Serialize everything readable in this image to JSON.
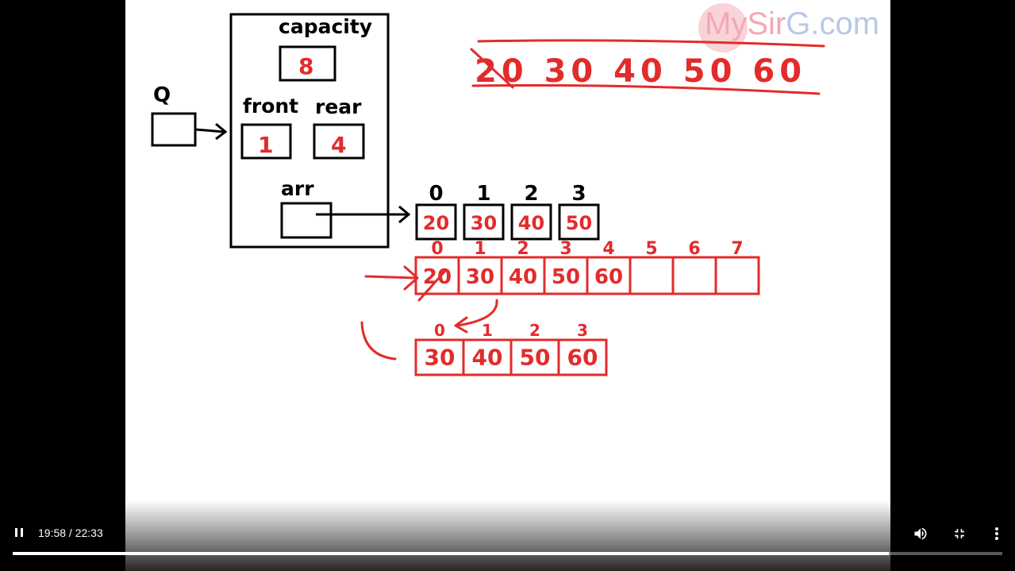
{
  "logo": {
    "part1": "My",
    "part2": "Sir",
    "part3": "G",
    "part4": ".com"
  },
  "diagram": {
    "q_label": "Q",
    "struct_fields": {
      "capacity": "capacity",
      "front": "front",
      "rear": "rear",
      "arr": "arr"
    },
    "struct_values": {
      "capacity": "8",
      "front": "1",
      "rear": "4"
    },
    "array_indices": [
      "0",
      "1",
      "2",
      "3"
    ],
    "array_values": [
      "20",
      "30",
      "40",
      "50"
    ],
    "sequence": "20 30 40 50 60",
    "big_array_indices": [
      "0",
      "1",
      "2",
      "3",
      "4",
      "5",
      "6",
      "7"
    ],
    "big_array_values": [
      "20",
      "30",
      "40",
      "50",
      "60",
      "",
      "",
      ""
    ],
    "new_array_indices": [
      "0",
      "1",
      "2",
      "3"
    ],
    "new_array_values": [
      "30",
      "40",
      "50",
      "60"
    ]
  },
  "player": {
    "current_time": "19:58",
    "duration": "22:33",
    "progress": 0.885,
    "icons": {
      "play_pause": "pause-icon",
      "volume": "volume-icon",
      "fullscreen": "exit-fullscreen-icon",
      "more": "more-vert-icon"
    }
  }
}
